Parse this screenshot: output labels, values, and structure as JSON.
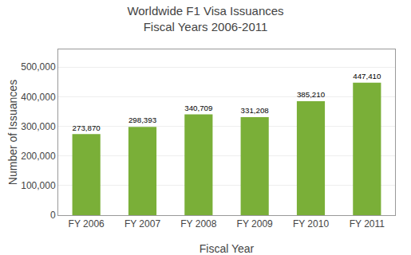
{
  "chart_data": {
    "type": "bar",
    "title": "Worldwide F1 Visa Issuances\nFiscal Years 2006-2011",
    "xlabel": "Fiscal Year",
    "ylabel": "Number of Issuances",
    "categories": [
      "FY 2006",
      "FY 2007",
      "FY 2008",
      "FY 2009",
      "FY 2010",
      "FY 2011"
    ],
    "values": [
      273870,
      298393,
      340709,
      331208,
      385210,
      447410
    ],
    "value_labels": [
      "273,870",
      "298,393",
      "340,709",
      "331,208",
      "385,210",
      "447,410"
    ],
    "data_labels": true,
    "color": "#7aaf38",
    "ylim": [
      0,
      560000
    ],
    "yticks": [
      0,
      {
        "value": 100000,
        "label": "100,000"
      },
      {
        "value": 200000,
        "label": "200,000"
      },
      {
        "value": 300000,
        "label": "300,000"
      },
      {
        "value": 400000,
        "label": "400,000"
      },
      {
        "value": 500000,
        "label": "500,000"
      }
    ],
    "grid": true
  }
}
